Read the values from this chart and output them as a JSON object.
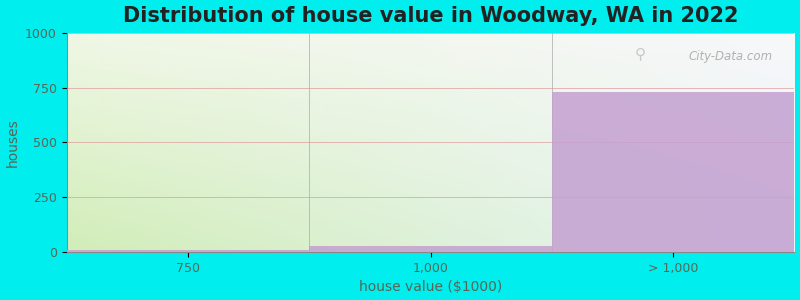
{
  "title": "Distribution of house value in Woodway, WA in 2022",
  "xlabel": "house value ($1000)",
  "ylabel": "houses",
  "categories": [
    "750",
    "1,000",
    "> 1,000"
  ],
  "values": [
    10,
    30,
    730
  ],
  "bar_color": "#c4a0d0",
  "ylim": [
    0,
    1000
  ],
  "yticks": [
    0,
    250,
    500,
    750,
    1000
  ],
  "title_fontsize": 15,
  "axis_label_fontsize": 10,
  "tick_fontsize": 9,
  "background_color": "#00eeee",
  "grad_color_topleft": "#f0f5e8",
  "grad_color_topright": "#f8f8f8",
  "grad_color_bottomleft": "#cce8b0",
  "grad_color_bottomright": "#eef4f8",
  "title_color": "#222222",
  "label_color": "#556655",
  "grid_color": "#dd9999",
  "watermark": "City-Data.com"
}
